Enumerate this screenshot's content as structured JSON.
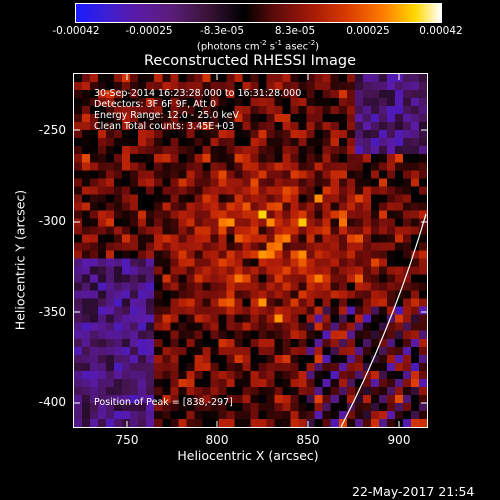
{
  "colorbar": {
    "ticks": [
      "-0.00042",
      "-0.00025",
      "-8.3e-05",
      "8.3e-05",
      "0.00025",
      "0.00042"
    ],
    "units_prefix": "(photons cm",
    "units_sup1": "-2",
    "units_mid": " s",
    "units_sup2": "-1",
    "units_end": " asec",
    "units_sup3": "-2",
    "units_close": ")"
  },
  "title": "Reconstructed RHESSI Image",
  "annotations": {
    "time": "30-Sep-2014 16:23:28.000 to 16:31:28.000",
    "detectors": "Detectors: 3F 6F 9F, Att 0",
    "energy": "Energy Range: 12.0 - 25.0 keV",
    "clean": "Clean    Total counts: 3.45E+03",
    "peak": "Position of Peak = [838,-297]"
  },
  "axes": {
    "xlabel": "Heliocentric X (arcsec)",
    "ylabel": "Heliocentric Y (arcsec)",
    "xticks": [
      "750",
      "800",
      "850",
      "900"
    ],
    "yticks": [
      "-250",
      "-300",
      "-350",
      "-400"
    ]
  },
  "timestamp": "22-May-2017 21:54",
  "colors": {
    "low": "#1a1aff",
    "mid": "#000000",
    "high": "#ffffff"
  }
}
